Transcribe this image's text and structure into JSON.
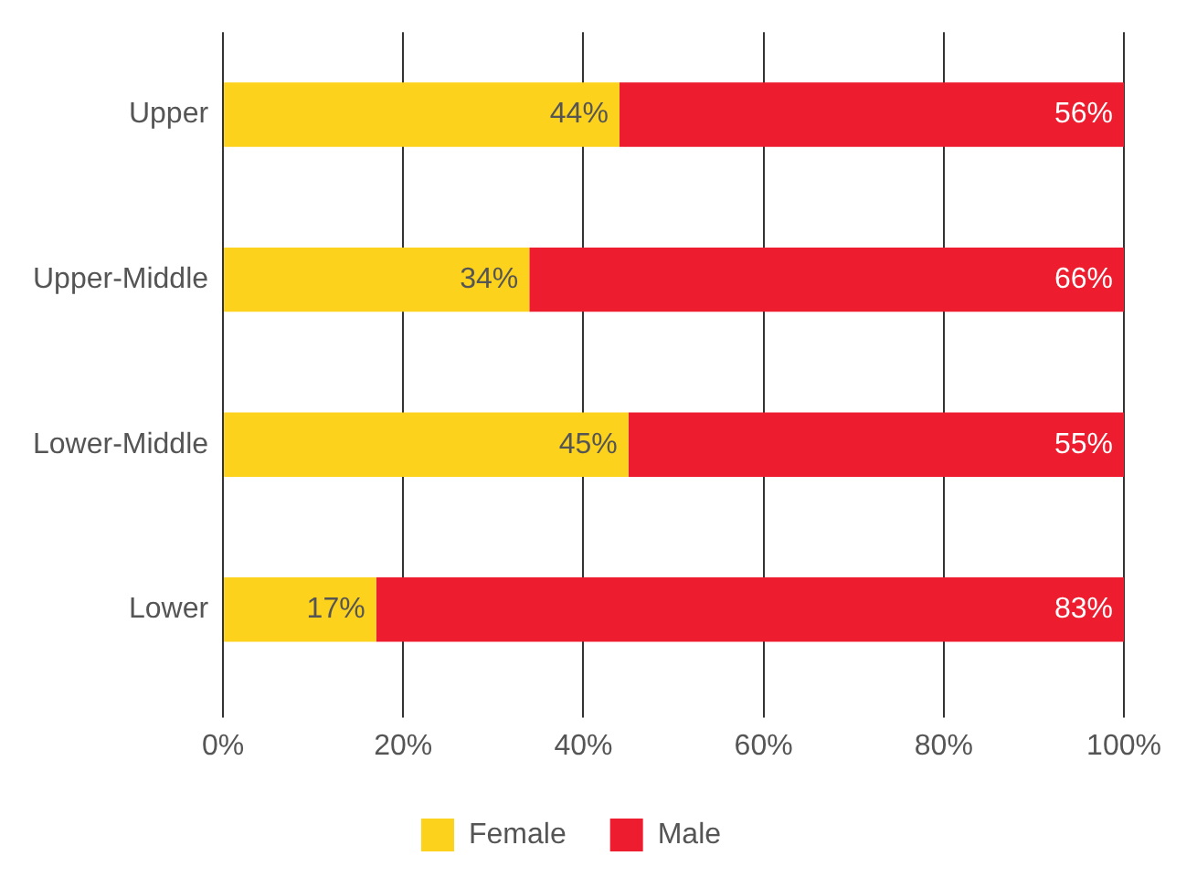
{
  "chart_data": {
    "type": "bar",
    "orientation": "horizontal",
    "stacked": true,
    "categories": [
      "Upper",
      "Upper-Middle",
      "Lower-Middle",
      "Lower"
    ],
    "series": [
      {
        "name": "Female",
        "color": "#fcd21c",
        "values": [
          44,
          34,
          45,
          17
        ],
        "value_labels": [
          "44%",
          "34%",
          "45%",
          "17%"
        ]
      },
      {
        "name": "Male",
        "color": "#ed1c2e",
        "values": [
          56,
          66,
          55,
          83
        ],
        "value_labels": [
          "56%",
          "66%",
          "55%",
          "83%"
        ]
      }
    ],
    "xlim": [
      0,
      100
    ],
    "xticks": [
      {
        "value": 0,
        "label": "0%"
      },
      {
        "value": 20,
        "label": "20%"
      },
      {
        "value": 40,
        "label": "40%"
      },
      {
        "value": 60,
        "label": "60%"
      },
      {
        "value": 80,
        "label": "80%"
      },
      {
        "value": 100,
        "label": "100%"
      }
    ],
    "grid": "x",
    "legend": "bottom"
  }
}
